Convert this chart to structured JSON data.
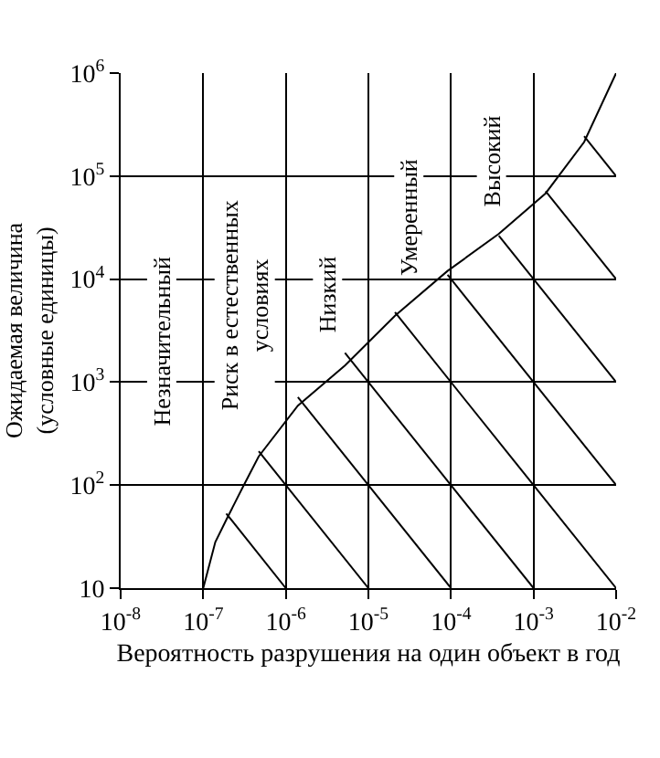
{
  "chart_data": {
    "type": "line",
    "xlabel": "Вероятность разрушения на один объект в год",
    "ylabel": "Ожидаемая величина\n(условные единицы)",
    "log": "xy",
    "grid": true,
    "marker": "none",
    "line_style": "solid",
    "xlim": [
      1e-08,
      0.01
    ],
    "xticks": [
      {
        "value": 1e-08,
        "label": "10$^{-8}$"
      },
      {
        "value": 1e-07,
        "label": "10$^{-7}$"
      },
      {
        "value": 1e-06,
        "label": "10$^{-6}$"
      },
      {
        "value": 1e-05,
        "label": "10$^{-5}$"
      },
      {
        "value": 0.0001,
        "label": "10$^{-4}$"
      },
      {
        "value": 0.001,
        "label": "10$^{-3}$"
      },
      {
        "value": 0.01,
        "label": "10$^{-2}$"
      }
    ],
    "ylim": [
      10,
      1000000
    ],
    "yticks": [
      10,
      {
        "value": 100,
        "label": "10$^{2}$"
      },
      {
        "value": 1000,
        "label": "10$^{3}$"
      },
      {
        "value": 10000,
        "label": "10$^{4}$"
      },
      {
        "value": 100000,
        "label": "10$^{5}$"
      },
      {
        "value": 1000000,
        "label": "10$^{6}$"
      }
    ],
    "annotations": [
      "Незначительный",
      "Риск в естественных\nусловиях",
      "Низкий",
      "Умеренный",
      "Высокий"
    ],
    "series": [
      {
        "color": "#000000",
        "x": [
          1e-07,
          1.4e-07,
          1.9e-07,
          3e-07,
          4.7e-07,
          1.4e-06,
          5.2e-06,
          2.1e-05,
          9.1e-05,
          0.00038,
          0.0014,
          0.0041,
          0.01
        ],
        "values": [
          10,
          28,
          46,
          95,
          190,
          590,
          1450,
          4400,
          12000,
          27500,
          68000,
          214000,
          1000000
        ]
      },
      {
        "color": "#000000",
        "x": [
          1.9e-07,
          1e-06
        ],
        "values": [
          53,
          10
        ]
      },
      {
        "color": "#000000",
        "x": [
          4.7e-07,
          1e-05
        ],
        "values": [
          213,
          10
        ]
      },
      {
        "color": "#000000",
        "x": [
          1.4e-06,
          0.0001
        ],
        "values": [
          714,
          10
        ]
      },
      {
        "color": "#000000",
        "x": [
          5.2e-06,
          0.001
        ],
        "values": [
          1920,
          10
        ]
      },
      {
        "color": "#000000",
        "x": [
          2.1e-05,
          0.01
        ],
        "values": [
          4760,
          10
        ]
      },
      {
        "color": "#000000",
        "x": [
          9.1e-05,
          0.01
        ],
        "values": [
          11000,
          100
        ]
      },
      {
        "color": "#000000",
        "x": [
          0.00038,
          0.01
        ],
        "values": [
          26300,
          1000
        ]
      },
      {
        "color": "#000000",
        "x": [
          0.0014,
          0.01
        ],
        "values": [
          71400,
          10000
        ]
      },
      {
        "color": "#000000",
        "x": [
          0.0041,
          0.01
        ],
        "values": [
          244000,
          100000
        ]
      }
    ]
  }
}
